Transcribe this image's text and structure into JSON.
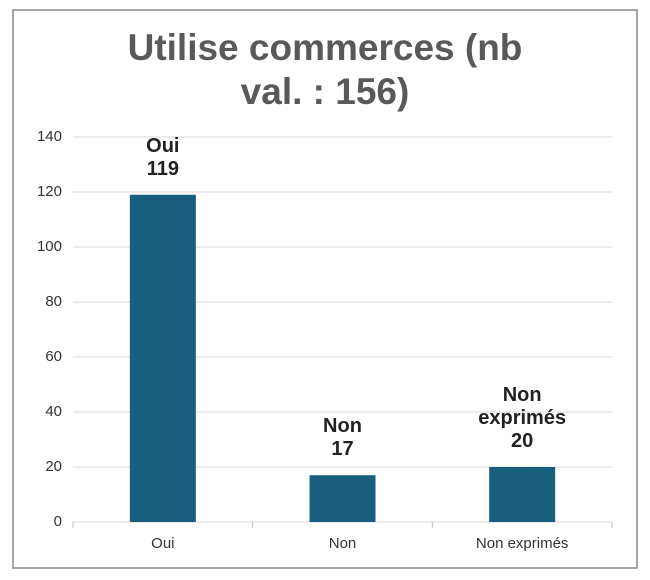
{
  "chart_data": {
    "type": "bar",
    "title": "Utilise commerces (nb val. : 156)",
    "categories": [
      "Oui",
      "Non",
      "Non exprimés"
    ],
    "values": [
      119,
      17,
      20
    ],
    "color": "#175e7f",
    "ylim": [
      0,
      140
    ],
    "yticks": [
      0,
      20,
      40,
      60,
      80,
      100,
      120,
      140
    ],
    "grid": true
  }
}
